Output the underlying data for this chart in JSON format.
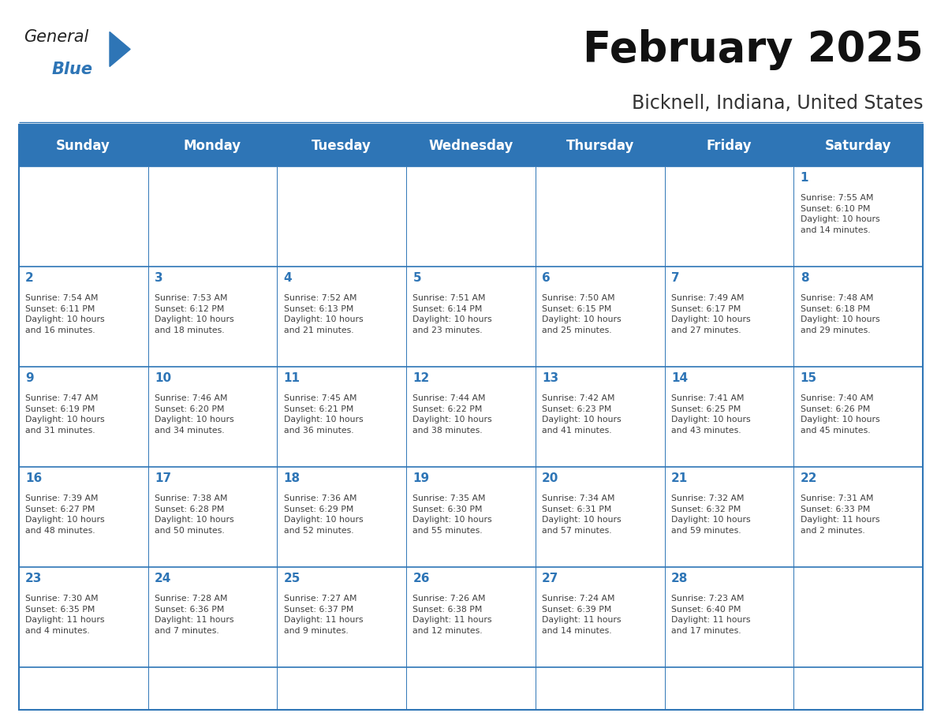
{
  "title": "February 2025",
  "subtitle": "Bicknell, Indiana, United States",
  "header_color": "#2E75B6",
  "header_text_color": "#FFFFFF",
  "cell_border_color": "#2E75B6",
  "day_number_color": "#2E75B6",
  "info_text_color": "#404040",
  "background_color": "#FFFFFF",
  "days_of_week": [
    "Sunday",
    "Monday",
    "Tuesday",
    "Wednesday",
    "Thursday",
    "Friday",
    "Saturday"
  ],
  "weeks": [
    [
      {
        "day": "",
        "info": ""
      },
      {
        "day": "",
        "info": ""
      },
      {
        "day": "",
        "info": ""
      },
      {
        "day": "",
        "info": ""
      },
      {
        "day": "",
        "info": ""
      },
      {
        "day": "",
        "info": ""
      },
      {
        "day": "1",
        "info": "Sunrise: 7:55 AM\nSunset: 6:10 PM\nDaylight: 10 hours\nand 14 minutes."
      }
    ],
    [
      {
        "day": "2",
        "info": "Sunrise: 7:54 AM\nSunset: 6:11 PM\nDaylight: 10 hours\nand 16 minutes."
      },
      {
        "day": "3",
        "info": "Sunrise: 7:53 AM\nSunset: 6:12 PM\nDaylight: 10 hours\nand 18 minutes."
      },
      {
        "day": "4",
        "info": "Sunrise: 7:52 AM\nSunset: 6:13 PM\nDaylight: 10 hours\nand 21 minutes."
      },
      {
        "day": "5",
        "info": "Sunrise: 7:51 AM\nSunset: 6:14 PM\nDaylight: 10 hours\nand 23 minutes."
      },
      {
        "day": "6",
        "info": "Sunrise: 7:50 AM\nSunset: 6:15 PM\nDaylight: 10 hours\nand 25 minutes."
      },
      {
        "day": "7",
        "info": "Sunrise: 7:49 AM\nSunset: 6:17 PM\nDaylight: 10 hours\nand 27 minutes."
      },
      {
        "day": "8",
        "info": "Sunrise: 7:48 AM\nSunset: 6:18 PM\nDaylight: 10 hours\nand 29 minutes."
      }
    ],
    [
      {
        "day": "9",
        "info": "Sunrise: 7:47 AM\nSunset: 6:19 PM\nDaylight: 10 hours\nand 31 minutes."
      },
      {
        "day": "10",
        "info": "Sunrise: 7:46 AM\nSunset: 6:20 PM\nDaylight: 10 hours\nand 34 minutes."
      },
      {
        "day": "11",
        "info": "Sunrise: 7:45 AM\nSunset: 6:21 PM\nDaylight: 10 hours\nand 36 minutes."
      },
      {
        "day": "12",
        "info": "Sunrise: 7:44 AM\nSunset: 6:22 PM\nDaylight: 10 hours\nand 38 minutes."
      },
      {
        "day": "13",
        "info": "Sunrise: 7:42 AM\nSunset: 6:23 PM\nDaylight: 10 hours\nand 41 minutes."
      },
      {
        "day": "14",
        "info": "Sunrise: 7:41 AM\nSunset: 6:25 PM\nDaylight: 10 hours\nand 43 minutes."
      },
      {
        "day": "15",
        "info": "Sunrise: 7:40 AM\nSunset: 6:26 PM\nDaylight: 10 hours\nand 45 minutes."
      }
    ],
    [
      {
        "day": "16",
        "info": "Sunrise: 7:39 AM\nSunset: 6:27 PM\nDaylight: 10 hours\nand 48 minutes."
      },
      {
        "day": "17",
        "info": "Sunrise: 7:38 AM\nSunset: 6:28 PM\nDaylight: 10 hours\nand 50 minutes."
      },
      {
        "day": "18",
        "info": "Sunrise: 7:36 AM\nSunset: 6:29 PM\nDaylight: 10 hours\nand 52 minutes."
      },
      {
        "day": "19",
        "info": "Sunrise: 7:35 AM\nSunset: 6:30 PM\nDaylight: 10 hours\nand 55 minutes."
      },
      {
        "day": "20",
        "info": "Sunrise: 7:34 AM\nSunset: 6:31 PM\nDaylight: 10 hours\nand 57 minutes."
      },
      {
        "day": "21",
        "info": "Sunrise: 7:32 AM\nSunset: 6:32 PM\nDaylight: 10 hours\nand 59 minutes."
      },
      {
        "day": "22",
        "info": "Sunrise: 7:31 AM\nSunset: 6:33 PM\nDaylight: 11 hours\nand 2 minutes."
      }
    ],
    [
      {
        "day": "23",
        "info": "Sunrise: 7:30 AM\nSunset: 6:35 PM\nDaylight: 11 hours\nand 4 minutes."
      },
      {
        "day": "24",
        "info": "Sunrise: 7:28 AM\nSunset: 6:36 PM\nDaylight: 11 hours\nand 7 minutes."
      },
      {
        "day": "25",
        "info": "Sunrise: 7:27 AM\nSunset: 6:37 PM\nDaylight: 11 hours\nand 9 minutes."
      },
      {
        "day": "26",
        "info": "Sunrise: 7:26 AM\nSunset: 6:38 PM\nDaylight: 11 hours\nand 12 minutes."
      },
      {
        "day": "27",
        "info": "Sunrise: 7:24 AM\nSunset: 6:39 PM\nDaylight: 11 hours\nand 14 minutes."
      },
      {
        "day": "28",
        "info": "Sunrise: 7:23 AM\nSunset: 6:40 PM\nDaylight: 11 hours\nand 17 minutes."
      },
      {
        "day": "",
        "info": ""
      }
    ]
  ],
  "logo_text_general": "General",
  "logo_text_blue": "Blue",
  "logo_color_general": "#222222",
  "logo_color_blue": "#2E75B6",
  "logo_triangle_color": "#2E75B6"
}
